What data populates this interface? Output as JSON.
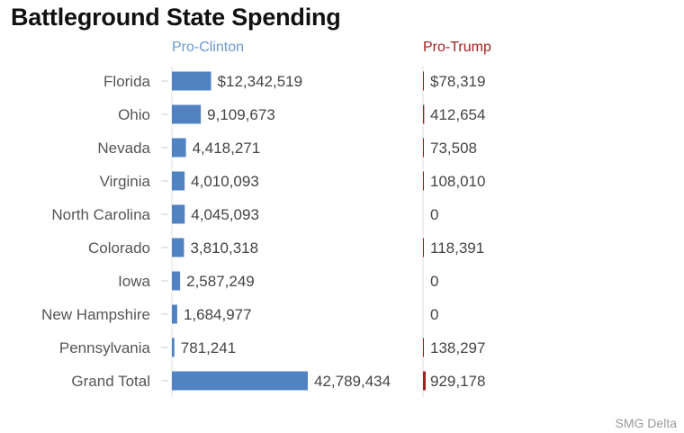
{
  "page": {
    "title": "Battleground State Spending",
    "source": "SMG Delta"
  },
  "chart_data": {
    "type": "bar",
    "orientation": "horizontal",
    "title": "Battleground State Spending",
    "categories": [
      "Florida",
      "Ohio",
      "Nevada",
      "Virginia",
      "North Carolina",
      "Colorado",
      "Iowa",
      "New Hampshire",
      "Pennsylvania",
      "Grand Total"
    ],
    "series": [
      {
        "name": "Pro-Clinton",
        "color": "#5183c3",
        "values": [
          12342519,
          9109673,
          4418271,
          4010093,
          4045093,
          3810318,
          2587249,
          1684977,
          781241,
          42789434
        ],
        "labels": [
          "$12,342,519",
          "9,109,673",
          "4,418,271",
          "4,010,093",
          "4,045,093",
          "3,810,318",
          "2,587,249",
          "1,684,977",
          "781,241",
          "42,789,434"
        ]
      },
      {
        "name": "Pro-Trump",
        "color": "#a32020",
        "values": [
          78319,
          412654,
          73508,
          108010,
          0,
          118391,
          0,
          0,
          138297,
          929178
        ],
        "labels": [
          "$78,319",
          "412,654",
          "73,508",
          "108,010",
          "0",
          "118,391",
          "0",
          "0",
          "138,297",
          "929,178"
        ]
      }
    ],
    "xlim": [
      0,
      42789434
    ],
    "grid": false,
    "legend": "column headers"
  }
}
